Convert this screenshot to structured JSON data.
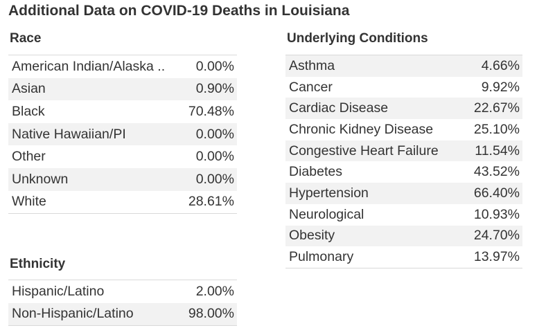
{
  "title": "Additional Data on COVID-19 Deaths in Louisiana",
  "race": {
    "header": "Race",
    "rows": [
      {
        "label": "American Indian/Alaska ..",
        "value": "0.00%"
      },
      {
        "label": "Asian",
        "value": "0.90%"
      },
      {
        "label": "Black",
        "value": "70.48%"
      },
      {
        "label": "Native Hawaiian/PI",
        "value": "0.00%"
      },
      {
        "label": "Other",
        "value": "0.00%"
      },
      {
        "label": "Unknown",
        "value": "0.00%"
      },
      {
        "label": "White",
        "value": "28.61%"
      }
    ]
  },
  "ethnicity": {
    "header": "Ethnicity",
    "rows": [
      {
        "label": "Hispanic/Latino",
        "value": "2.00%"
      },
      {
        "label": "Non-Hispanic/Latino",
        "value": "98.00%"
      }
    ]
  },
  "conditions": {
    "header": "Underlying Conditions",
    "rows": [
      {
        "label": "Asthma",
        "value": "4.66%"
      },
      {
        "label": "Cancer",
        "value": "9.92%"
      },
      {
        "label": "Cardiac Disease",
        "value": "22.67%"
      },
      {
        "label": "Chronic Kidney Disease",
        "value": "25.10%"
      },
      {
        "label": "Congestive Heart Failure",
        "value": "11.54%"
      },
      {
        "label": "Diabetes",
        "value": "43.52%"
      },
      {
        "label": "Hypertension",
        "value": "66.40%"
      },
      {
        "label": "Neurological",
        "value": "10.93%"
      },
      {
        "label": "Obesity",
        "value": "24.70%"
      },
      {
        "label": "Pulmonary",
        "value": "13.97%"
      }
    ]
  }
}
